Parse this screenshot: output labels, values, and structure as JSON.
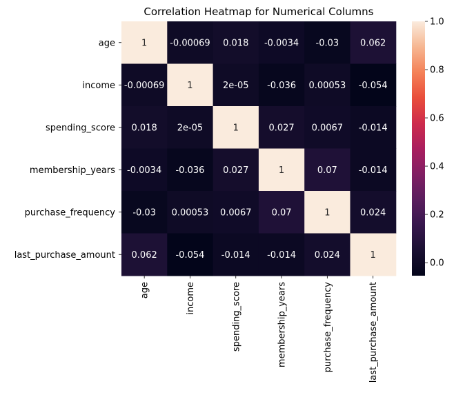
{
  "chart_data": {
    "type": "heatmap",
    "title": "Correlation Heatmap for Numerical Columns",
    "rows": [
      "age",
      "income",
      "spending_score",
      "membership_years",
      "purchase_frequency",
      "last_purchase_amount"
    ],
    "columns": [
      "age",
      "income",
      "spending_score",
      "membership_years",
      "purchase_frequency",
      "last_purchase_amount"
    ],
    "values": [
      [
        1,
        -0.00069,
        0.018,
        -0.0034,
        -0.03,
        0.062
      ],
      [
        -0.00069,
        1,
        2e-05,
        -0.036,
        0.00053,
        -0.054
      ],
      [
        0.018,
        2e-05,
        1,
        0.027,
        0.0067,
        -0.014
      ],
      [
        -0.0034,
        -0.036,
        0.027,
        1,
        0.07,
        -0.014
      ],
      [
        -0.03,
        0.00053,
        0.0067,
        0.07,
        1,
        0.024
      ],
      [
        0.062,
        -0.054,
        -0.014,
        -0.014,
        0.024,
        1
      ]
    ],
    "annotations": [
      [
        "1",
        "-0.00069",
        "0.018",
        "-0.0034",
        "-0.03",
        "0.062"
      ],
      [
        "-0.00069",
        "1",
        "2e-05",
        "-0.036",
        "0.00053",
        "-0.054"
      ],
      [
        "0.018",
        "2e-05",
        "1",
        "0.027",
        "0.0067",
        "-0.014"
      ],
      [
        "-0.0034",
        "-0.036",
        "0.027",
        "1",
        "0.07",
        "-0.014"
      ],
      [
        "-0.03",
        "0.00053",
        "0.0067",
        "0.07",
        "1",
        "0.024"
      ],
      [
        "0.062",
        "-0.054",
        "-0.014",
        "-0.014",
        "0.024",
        "1"
      ]
    ],
    "colorbar": {
      "range": [
        -0.054,
        1.0
      ],
      "ticks": [
        0.0,
        0.2,
        0.4,
        0.6,
        0.8,
        1.0
      ],
      "tick_labels": [
        "0.0",
        "0.2",
        "0.4",
        "0.6",
        "0.8",
        "1.0"
      ],
      "colormap": "rocket",
      "placement": "right"
    },
    "grid": false
  }
}
